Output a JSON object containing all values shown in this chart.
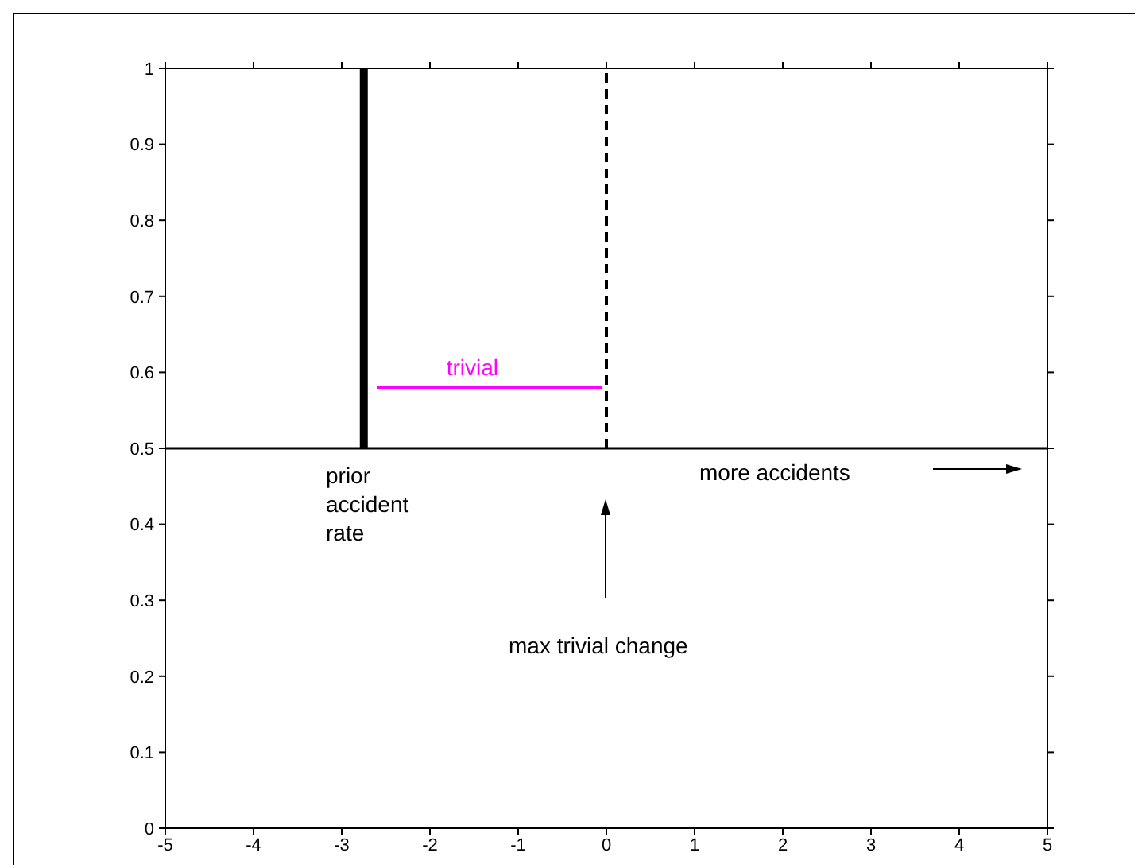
{
  "chart_data": {
    "type": "line",
    "xlim": [
      -5,
      5
    ],
    "xticks": [
      -5,
      -4,
      -3,
      -2,
      -1,
      0,
      1,
      2,
      3,
      4,
      5
    ],
    "ylim": [
      0,
      1
    ],
    "yticks": [
      0,
      0.1,
      0.2,
      0.3,
      0.4,
      0.5,
      0.6,
      0.7,
      0.8,
      0.9,
      1
    ],
    "grid": false,
    "marker": "none",
    "series": [
      {
        "color": "#000000",
        "x": [
          -2.75,
          -2.75
        ],
        "values": [
          0.5,
          1
        ],
        "line_style": "solid"
      },
      {
        "color": "#000000",
        "x": [
          0,
          0
        ],
        "values": [
          0.5,
          1
        ],
        "line_style": "dashed"
      },
      {
        "name": "trivial",
        "color": "#ff00ff",
        "x": [
          -2.6,
          -0.05
        ],
        "values": [
          0.58,
          0.58
        ],
        "line_style": "solid"
      }
    ],
    "ref_lines": [
      {
        "axis": "y",
        "value": 0.5,
        "color": "#000000"
      }
    ],
    "annotations": [
      "prior\naccident\nrate",
      "max trivial change",
      "more accidents"
    ]
  }
}
